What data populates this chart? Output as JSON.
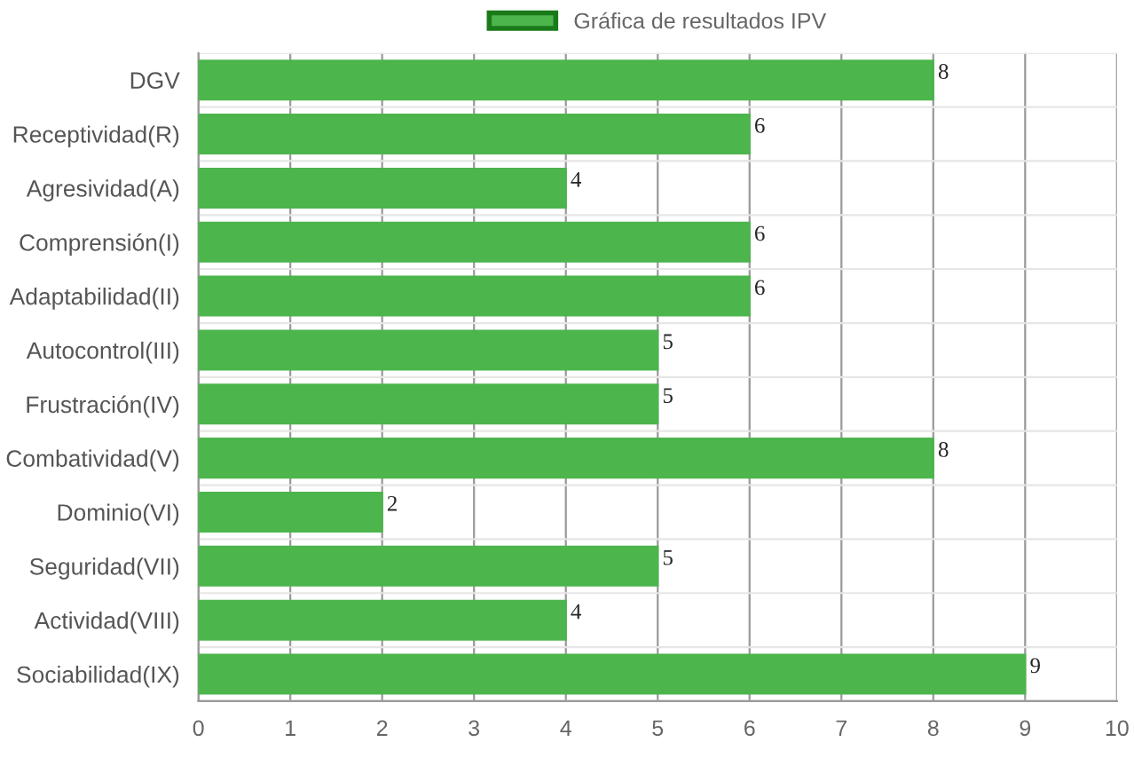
{
  "chart_data": {
    "type": "bar",
    "orientation": "horizontal",
    "categories": [
      "DGV",
      "Receptividad(R)",
      "Agresividad(A)",
      "Comprensión(I)",
      "Adaptabilidad(II)",
      "Autocontrol(III)",
      "Frustración(IV)",
      "Combatividad(V)",
      "Dominio(VI)",
      "Seguridad(VII)",
      "Actividad(VIII)",
      "Sociabilidad(IX)"
    ],
    "series": [
      {
        "name": "Gráfica de resultados IPV",
        "color": "#4cb54c",
        "values": [
          8,
          6,
          4,
          6,
          6,
          5,
          5,
          8,
          2,
          5,
          4,
          9
        ]
      }
    ],
    "xlim": [
      0,
      10
    ],
    "xticks": [
      0,
      1,
      2,
      3,
      4,
      5,
      6,
      7,
      8,
      9,
      10
    ],
    "grid": true,
    "legend": "top",
    "data_labels": true
  }
}
